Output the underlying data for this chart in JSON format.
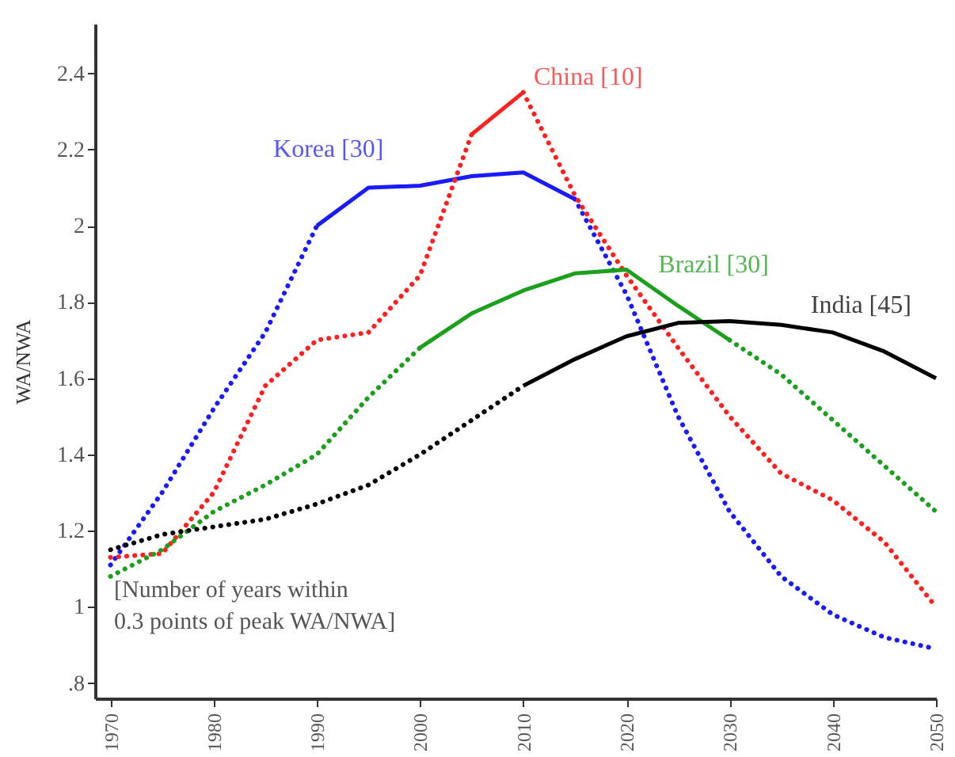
{
  "chart_data": {
    "type": "line",
    "ylabel": "WA/NWA",
    "annotations": [
      "[Number of years within\n0.3 points of peak WA/NWA]"
    ],
    "xlim": [
      1968.5,
      2050
    ],
    "xticks": [
      1970,
      1980,
      1990,
      2000,
      2010,
      2020,
      2030,
      2040,
      2050
    ],
    "ylim": [
      0.76,
      2.53
    ],
    "yticks": [
      {
        "value": 0.8,
        "label": ".8"
      },
      1,
      1.2,
      1.4,
      1.6,
      1.8,
      2,
      2.2,
      2.4
    ],
    "grid": false,
    "marker": "none",
    "series": [
      {
        "color": "#1a1aff",
        "line_style": "dotted",
        "x": [
          1970,
          1975,
          1980,
          1985,
          1990
        ],
        "values": [
          1.11,
          1.3,
          1.52,
          1.72,
          2.0
        ]
      },
      {
        "name": "Korea [30]",
        "color": "#1a1aff",
        "line_style": "solid",
        "x": [
          1990,
          1995,
          2000,
          2005,
          2010,
          2015
        ],
        "values": [
          2.0,
          2.1,
          2.105,
          2.13,
          2.14,
          2.07
        ]
      },
      {
        "color": "#1a1aff",
        "line_style": "dotted",
        "x": [
          2015,
          2020,
          2025,
          2030,
          2035,
          2040,
          2045,
          2050
        ],
        "values": [
          2.07,
          1.82,
          1.5,
          1.25,
          1.08,
          0.98,
          0.92,
          0.89
        ]
      },
      {
        "color": "#ff2020",
        "line_style": "dotted",
        "x": [
          1970,
          1975,
          1980,
          1985,
          1990,
          1995,
          2000,
          2005
        ],
        "values": [
          1.13,
          1.14,
          1.3,
          1.58,
          1.7,
          1.72,
          1.87,
          2.24
        ]
      },
      {
        "name": "China [10]",
        "color": "#ff2020",
        "line_style": "solid",
        "x": [
          2005,
          2010
        ],
        "values": [
          2.24,
          2.35
        ]
      },
      {
        "color": "#ff2020",
        "line_style": "dotted",
        "x": [
          2010,
          2015,
          2020,
          2025,
          2030,
          2035,
          2040,
          2045,
          2050
        ],
        "values": [
          2.35,
          2.08,
          1.87,
          1.68,
          1.5,
          1.35,
          1.28,
          1.17,
          1.0
        ]
      },
      {
        "color": "#1aa01a",
        "line_style": "dotted",
        "x": [
          1970,
          1975,
          1980,
          1985,
          1990,
          1995,
          2000
        ],
        "values": [
          1.08,
          1.15,
          1.25,
          1.32,
          1.4,
          1.55,
          1.68
        ]
      },
      {
        "name": "Brazil [30]",
        "color": "#1aa01a",
        "line_style": "solid",
        "x": [
          2000,
          2005,
          2010,
          2015,
          2020,
          2025,
          2030
        ],
        "values": [
          1.68,
          1.77,
          1.83,
          1.875,
          1.885,
          1.79,
          1.7
        ]
      },
      {
        "color": "#1aa01a",
        "line_style": "dotted",
        "x": [
          2030,
          2035,
          2040,
          2045,
          2050
        ],
        "values": [
          1.7,
          1.61,
          1.49,
          1.37,
          1.25
        ]
      },
      {
        "color": "#000000",
        "line_style": "dotted",
        "x": [
          1970,
          1975,
          1980,
          1985,
          1990,
          1995,
          2000,
          2005,
          2010
        ],
        "values": [
          1.15,
          1.19,
          1.21,
          1.23,
          1.27,
          1.32,
          1.4,
          1.49,
          1.58
        ]
      },
      {
        "name": "India [45]",
        "color": "#000000",
        "line_style": "solid",
        "x": [
          2010,
          2015,
          2020,
          2025,
          2030,
          2035,
          2040,
          2045,
          2050
        ],
        "values": [
          1.58,
          1.65,
          1.71,
          1.745,
          1.75,
          1.74,
          1.72,
          1.67,
          1.6
        ]
      }
    ]
  }
}
